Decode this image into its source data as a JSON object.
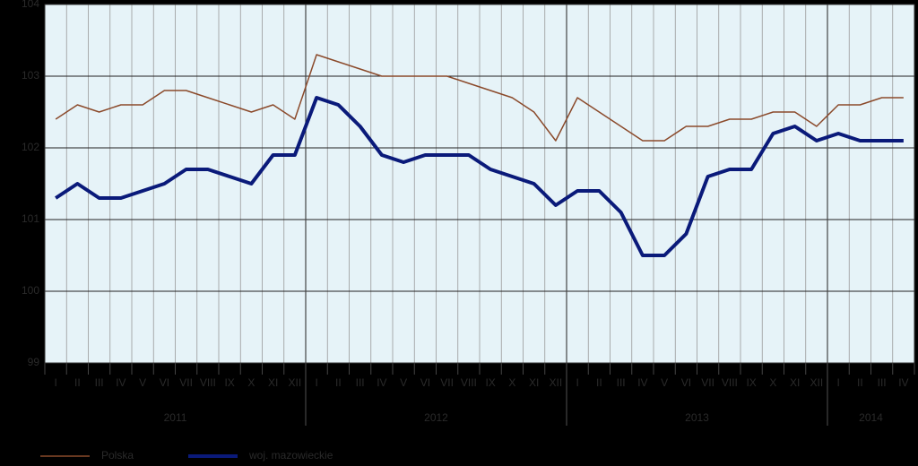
{
  "chart_data": {
    "type": "line",
    "periods": [
      {
        "year": "2011",
        "months": [
          "I",
          "II",
          "III",
          "IV",
          "V",
          "VI",
          "VII",
          "VIII",
          "IX",
          "X",
          "XI",
          "XII"
        ]
      },
      {
        "year": "2012",
        "months": [
          "I",
          "II",
          "III",
          "IV",
          "V",
          "VI",
          "VII",
          "VIII",
          "IX",
          "X",
          "XI",
          "XII"
        ]
      },
      {
        "year": "2013",
        "months": [
          "I",
          "II",
          "III",
          "IV",
          "V",
          "VI",
          "VII",
          "VIII",
          "IX",
          "X",
          "XI",
          "XII"
        ]
      },
      {
        "year": "2014",
        "months": [
          "I",
          "II",
          "III",
          "IV"
        ]
      }
    ],
    "series": [
      {
        "name": "Polska",
        "color": "#8b4a2b",
        "width": 1.5,
        "values": [
          102.4,
          102.6,
          102.5,
          102.6,
          102.6,
          102.8,
          102.8,
          102.7,
          102.6,
          102.5,
          102.6,
          102.4,
          103.3,
          103.2,
          103.1,
          103.0,
          103.0,
          103.0,
          103.0,
          102.9,
          102.8,
          102.7,
          102.5,
          102.1,
          102.7,
          102.5,
          102.3,
          102.1,
          102.1,
          102.3,
          102.3,
          102.4,
          102.4,
          102.5,
          102.5,
          102.3,
          102.6,
          102.6,
          102.7,
          102.7
        ]
      },
      {
        "name": "woj. mazowieckie",
        "color": "#0a1a7a",
        "width": 4,
        "values": [
          101.3,
          101.5,
          101.3,
          101.3,
          101.4,
          101.5,
          101.7,
          101.7,
          101.6,
          101.5,
          101.9,
          101.9,
          102.7,
          102.6,
          102.3,
          101.9,
          101.8,
          101.9,
          101.9,
          101.9,
          101.7,
          101.6,
          101.5,
          101.2,
          101.4,
          101.4,
          101.1,
          100.5,
          100.5,
          100.8,
          101.6,
          101.7,
          101.7,
          102.2,
          102.3,
          102.1,
          102.2,
          102.1,
          102.1,
          102.1
        ]
      }
    ],
    "ylim": [
      99,
      104
    ],
    "yticks": [
      99,
      100,
      101,
      102,
      103,
      104
    ],
    "grid": true
  }
}
